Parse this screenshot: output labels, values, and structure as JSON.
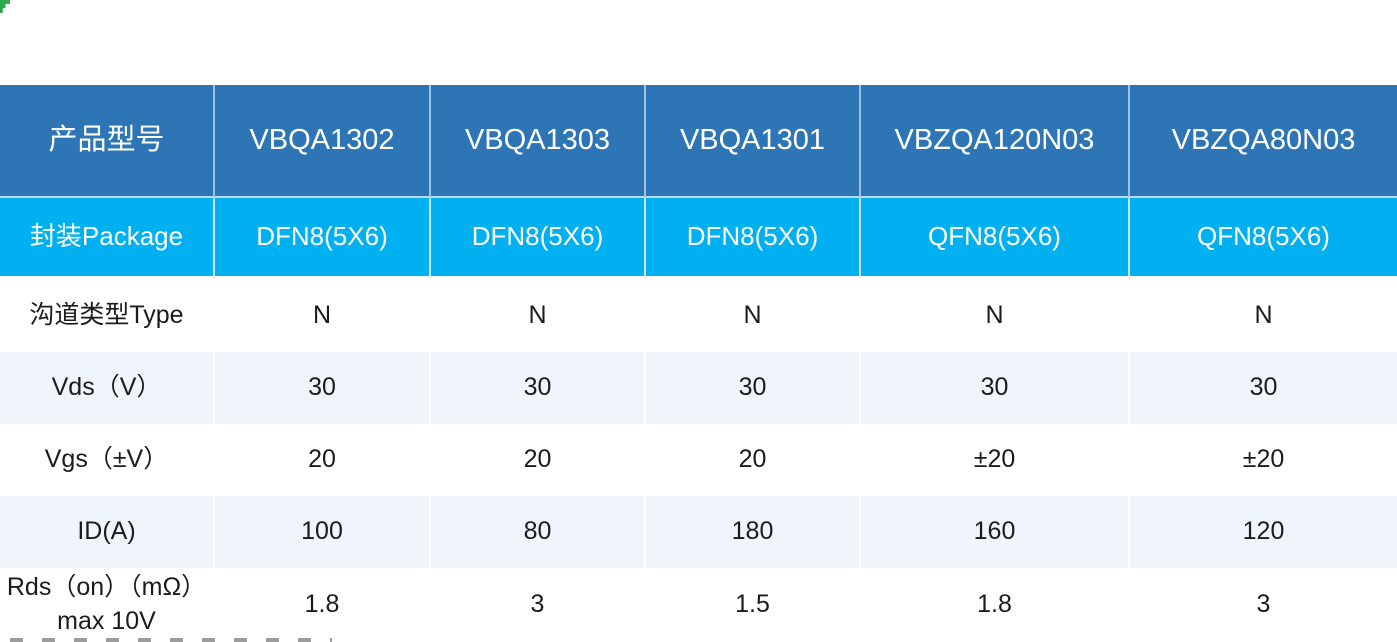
{
  "theme": {
    "header_bg": "#2E75B6",
    "header_text": "#FFFFFF",
    "package_bg": "#00B0F0",
    "package_text": "#FFFFFF",
    "stripe_bg": "#F0F4FB",
    "page_bg": "#FFFFFF",
    "body_text": "#1B1B1B",
    "divider": "#FFFFFF",
    "corner_mark": "#2FA84F"
  },
  "table": {
    "columns": [
      "产品型号",
      "VBQA1302",
      "VBQA1303",
      "VBQA1301",
      "VBZQA120N03",
      "VBZQA80N03"
    ],
    "rows": [
      {
        "label": "封装Package",
        "values": [
          "DFN8(5X6)",
          "DFN8(5X6)",
          "DFN8(5X6)",
          "QFN8(5X6)",
          "QFN8(5X6)"
        ]
      },
      {
        "label": "沟道类型Type",
        "values": [
          "N",
          "N",
          "N",
          "N",
          "N"
        ]
      },
      {
        "label": "Vds（V）",
        "values": [
          "30",
          "30",
          "30",
          "30",
          "30"
        ]
      },
      {
        "label": "Vgs（±V）",
        "values": [
          "20",
          "20",
          "20",
          "±20",
          "±20"
        ]
      },
      {
        "label": "ID(A)",
        "values": [
          "100",
          "80",
          "180",
          "160",
          "120"
        ]
      },
      {
        "label": "Rds（on）（mΩ）max 10V",
        "values": [
          "1.8",
          "3",
          "1.5",
          "1.8",
          "3"
        ]
      }
    ]
  }
}
